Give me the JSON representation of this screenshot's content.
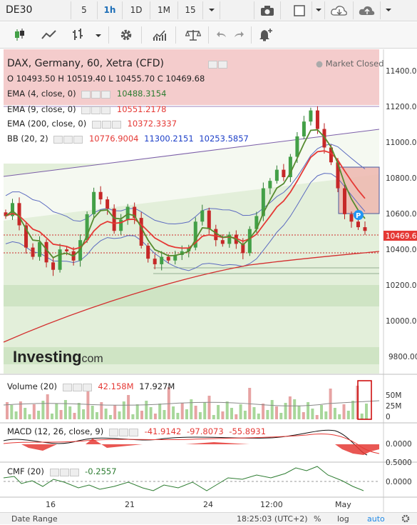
{
  "toolbar": {
    "symbol": "DE30",
    "intervals": [
      "5",
      "1h",
      "1D",
      "1M",
      "15"
    ],
    "active_interval": "1h",
    "dropdown_icon": "caret-down-icon",
    "camera_icon": "camera-icon",
    "cloud_icon": "cloud-icon"
  },
  "chart_header": {
    "title": "DAX, Germany, 60, Xetra (CFD)",
    "status": "Market Closed",
    "ohlc": {
      "o_label": "O",
      "o": "10493.50",
      "h_label": "H",
      "h": "10519.40",
      "l_label": "L",
      "l": "10455.70",
      "c_label": "C",
      "c": "10469.68"
    }
  },
  "indicators": [
    {
      "name": "EMA (4, close, 0)",
      "values": [
        "10488.3154"
      ],
      "colors": [
        "#2e7d32"
      ]
    },
    {
      "name": "EMA (9, close, 0)",
      "values": [
        "10551.2178"
      ],
      "colors": [
        "#e53935"
      ]
    },
    {
      "name": "EMA (200, close, 0)",
      "values": [
        "10372.3337"
      ],
      "colors": [
        "#e53935"
      ]
    },
    {
      "name": "BB (20, 2)",
      "values": [
        "10776.9004",
        "11300.2151",
        "10253.5857"
      ],
      "colors": [
        "#e53935",
        "#1e40c8",
        "#1e40c8"
      ]
    }
  ],
  "price_axis": {
    "labels": [
      "11400.00",
      "11200.00",
      "11000.00",
      "10800.00",
      "10600.00",
      "10400.00",
      "10200.00",
      "10000.00",
      "9800.00"
    ],
    "current_price": "10469.68",
    "current_color": "#e53935"
  },
  "watermark": {
    "brand": "Investing",
    "suffix": ".com"
  },
  "volume": {
    "label": "Volume (20)",
    "v1": "42.158M",
    "v2": "17.927M",
    "axis": [
      "50M",
      "25M",
      "0"
    ]
  },
  "macd": {
    "label": "MACD (12, 26, close, 9)",
    "v1": "-41.9142",
    "v2": "-97.8073",
    "v3": "-55.8931",
    "axis": [
      "0.0000"
    ]
  },
  "cmf": {
    "label": "CMF (20)",
    "v1": "-0.2557",
    "axis": [
      "0.5000",
      "0.0000"
    ]
  },
  "time_axis": [
    "16",
    "21",
    "24",
    "12:00",
    "May"
  ],
  "bottom": {
    "range_label": "Date Range",
    "time": "18:25:03 (UTC+2)",
    "percent": "%",
    "log": "log",
    "auto": "auto"
  },
  "chart_data": {
    "type": "candlestick",
    "symbol": "DAX",
    "ylim": [
      9700,
      11450
    ],
    "price_points": [
      10550,
      10620,
      10500,
      10380,
      10330,
      10410,
      10300,
      10260,
      10370,
      10360,
      10310,
      10420,
      10560,
      10680,
      10640,
      10590,
      10470,
      10530,
      10600,
      10540,
      10390,
      10320,
      10290,
      10330,
      10310,
      10340,
      10360,
      10380,
      10520,
      10580,
      10480,
      10420,
      10400,
      10450,
      10400,
      10350,
      10480,
      10550,
      10700,
      10740,
      10800,
      10760,
      10870,
      10980,
      11060,
      11120,
      11020,
      10920,
      10840,
      10700,
      10560,
      10520,
      10490,
      10470
    ]
  }
}
